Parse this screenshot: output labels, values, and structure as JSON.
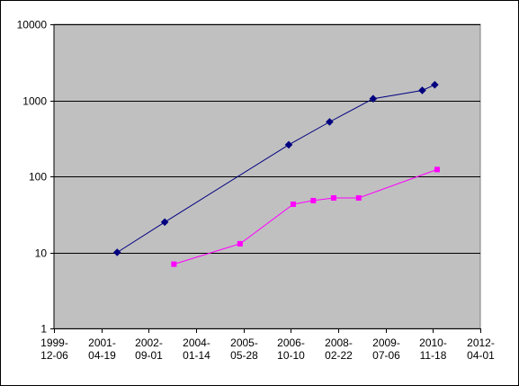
{
  "chart_data": {
    "type": "line",
    "title": "",
    "xlabel": "",
    "ylabel": "",
    "y_scale": "log",
    "ylim": [
      1,
      10000
    ],
    "y_ticks": [
      "1",
      "10",
      "100",
      "1000",
      "10000"
    ],
    "x_axis_type": "date",
    "xlim": [
      "1999-12-06",
      "2012-04-01"
    ],
    "x_ticks": [
      {
        "date": "1999-12-06",
        "line1": "1999-",
        "line2": "12-06"
      },
      {
        "date": "2001-04-19",
        "line1": "2001-",
        "line2": "04-19"
      },
      {
        "date": "2002-09-01",
        "line1": "2002-",
        "line2": "09-01"
      },
      {
        "date": "2004-01-14",
        "line1": "2004-",
        "line2": "01-14"
      },
      {
        "date": "2005-05-28",
        "line1": "2005-",
        "line2": "05-28"
      },
      {
        "date": "2006-10-10",
        "line1": "2006-",
        "line2": "10-10"
      },
      {
        "date": "2008-02-22",
        "line1": "2008-",
        "line2": "02-22"
      },
      {
        "date": "2009-07-06",
        "line1": "2009-",
        "line2": "07-06"
      },
      {
        "date": "2010-11-18",
        "line1": "2010-",
        "line2": "11-18"
      },
      {
        "date": "2012-04-01",
        "line1": "2012-",
        "line2": "04-01"
      }
    ],
    "plot_background": "#c0c0c0",
    "gridlines": "horizontal",
    "legend": "none",
    "series": [
      {
        "color": "#000080",
        "marker": "diamond",
        "points": [
          {
            "x": "2001-10-03",
            "y": 10
          },
          {
            "x": "2003-02-17",
            "y": 25
          },
          {
            "x": "2006-09-18",
            "y": 260
          },
          {
            "x": "2007-11-23",
            "y": 520
          },
          {
            "x": "2009-02-25",
            "y": 1050
          },
          {
            "x": "2010-07-28",
            "y": 1350
          },
          {
            "x": "2010-12-07",
            "y": 1600
          }
        ]
      },
      {
        "color": "#ff00ff",
        "marker": "square",
        "points": [
          {
            "x": "2003-05-25",
            "y": 7
          },
          {
            "x": "2005-04-22",
            "y": 13
          },
          {
            "x": "2006-11-04",
            "y": 43
          },
          {
            "x": "2007-06-04",
            "y": 48
          },
          {
            "x": "2008-01-05",
            "y": 52
          },
          {
            "x": "2008-09-25",
            "y": 52
          },
          {
            "x": "2011-01-01",
            "y": 123
          }
        ]
      }
    ]
  }
}
